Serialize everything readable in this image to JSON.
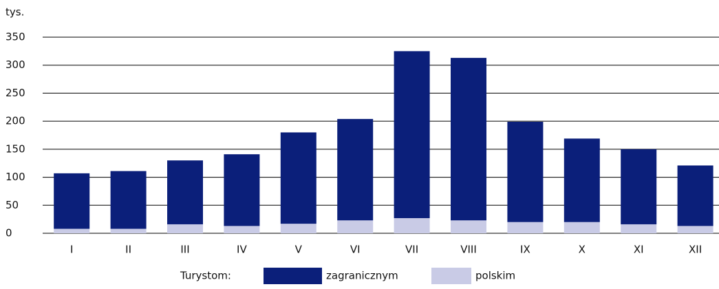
{
  "chart_data": {
    "type": "bar",
    "stacked": true,
    "y_unit": "tys.",
    "categories": [
      "I",
      "II",
      "III",
      "IV",
      "V",
      "VI",
      "VII",
      "VIII",
      "IX",
      "X",
      "XI",
      "XII"
    ],
    "series": [
      {
        "name": "zagranicznym",
        "color": "#0b1f7a",
        "values": [
          99,
          103,
          114,
          128,
          163,
          181,
          298,
          290,
          179,
          149,
          134,
          108
        ]
      },
      {
        "name": "polskim",
        "color": "#c9cbe6",
        "values": [
          8,
          8,
          16,
          13,
          17,
          23,
          27,
          23,
          20,
          20,
          16,
          13
        ]
      }
    ],
    "legend_title": "Turystom:",
    "ylim": [
      0,
      350
    ],
    "yticks": [
      0,
      50,
      100,
      150,
      200,
      250,
      300,
      350
    ],
    "grid": true,
    "legend": "bottom"
  }
}
